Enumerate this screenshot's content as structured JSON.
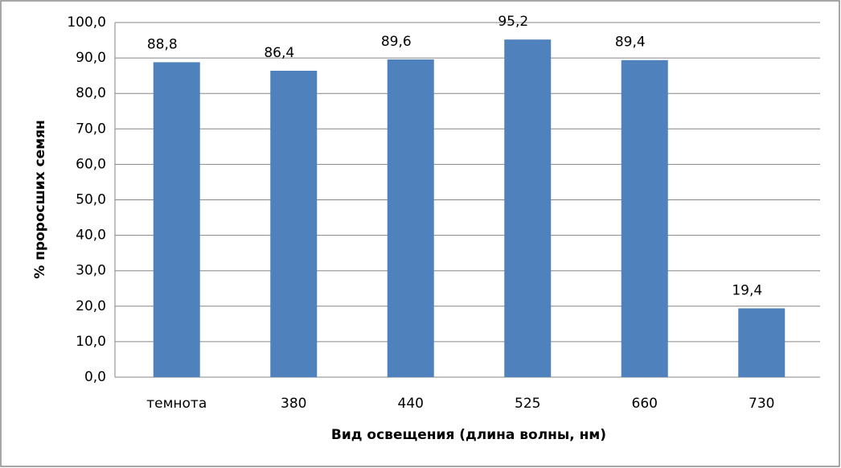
{
  "chart_data": {
    "type": "bar",
    "x_label": "Вид освещения (длина волны, нм)",
    "y_label": "% проросших семян",
    "categories": [
      "темнота",
      "380",
      "440",
      "525",
      "660",
      "730"
    ],
    "values": [
      88.8,
      86.4,
      89.6,
      95.2,
      89.4,
      19.4
    ],
    "value_labels": [
      "88,8",
      "86,4",
      "89,6",
      "95,2",
      "89,4",
      "19,4"
    ],
    "color": "#4f81bd",
    "ylim": [
      0,
      100
    ],
    "yticks": [
      {
        "value": 0,
        "label": "0,0"
      },
      {
        "value": 10,
        "label": "10,0"
      },
      {
        "value": 20,
        "label": "20,0"
      },
      {
        "value": 30,
        "label": "30,0"
      },
      {
        "value": 40,
        "label": "40,0"
      },
      {
        "value": 50,
        "label": "50,0"
      },
      {
        "value": 60,
        "label": "60,0"
      },
      {
        "value": 70,
        "label": "70,0"
      },
      {
        "value": 80,
        "label": "80,0"
      },
      {
        "value": 90,
        "label": "90,0"
      },
      {
        "value": 100,
        "label": "100,0"
      }
    ],
    "grid": true
  }
}
